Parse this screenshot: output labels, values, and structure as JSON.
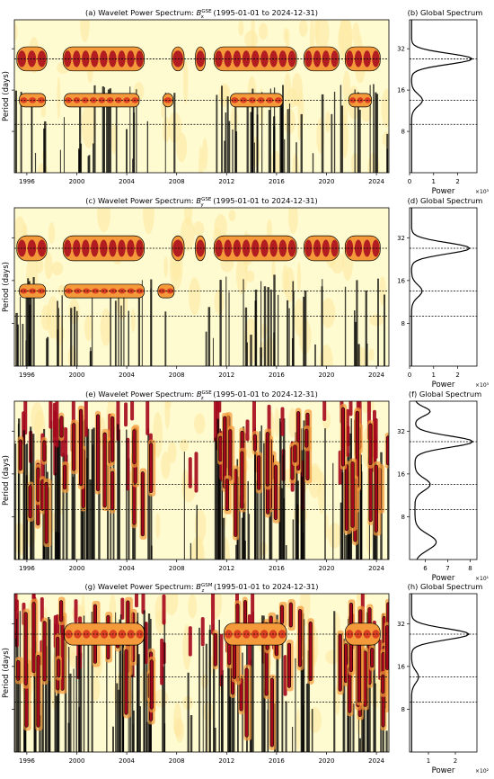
{
  "figure": {
    "ylabel": "Period (days)",
    "colors": {
      "background": "#fffbd0",
      "light": "#fde9a3",
      "orange": "#f59a3a",
      "red": "#d7301f",
      "darkred": "#a5071c",
      "contour": "#000000"
    }
  },
  "chart_data": [
    {
      "type": "heatmap",
      "title": "(a) Wavelet Power Spectrum: B_x^GSE (1995-01-01 to 2024-12-31)",
      "title_main": "(a) Wavelet Power Spectrum: ",
      "title_var": "B",
      "title_sub": "x",
      "title_sup": "GSE",
      "title_tail": " (1995-01-01 to 2024-12-31)",
      "xlabel": "",
      "ylabel": "Period (days)",
      "xticks": [
        "1996",
        "2000",
        "2004",
        "2008",
        "2012",
        "2016",
        "2020",
        "2024"
      ],
      "xlim": [
        1995.0,
        2025.0
      ],
      "yticks": [
        "8",
        "16",
        "32"
      ],
      "reference_periods": [
        27,
        13.5,
        9
      ],
      "bands": [
        {
          "period": 27,
          "intensity": 0.95,
          "active_years": [
            [
              1995.2,
              1997.6
            ],
            [
              1998.9,
              2005.4
            ],
            [
              2007.6,
              2008.6
            ],
            [
              2009.5,
              2010.3
            ],
            [
              2011.0,
              2017.6
            ],
            [
              2018.2,
              2021.0
            ],
            [
              2021.5,
              2024.3
            ]
          ]
        },
        {
          "period": 13.5,
          "intensity": 0.6,
          "active_years": [
            [
              1995.4,
              1997.5
            ],
            [
              1999.0,
              2005.0
            ],
            [
              2006.9,
              2007.7
            ],
            [
              2012.3,
              2016.5
            ],
            [
              2021.8,
              2023.6
            ]
          ]
        }
      ]
    },
    {
      "type": "line",
      "title": "(b) Global Spectrum",
      "xlabel": "Power",
      "x_multiplier": "×10³",
      "xticks": [
        "0",
        "1",
        "2"
      ],
      "xlim": [
        0,
        2.8
      ],
      "yticks": [
        "8",
        "16",
        "32"
      ],
      "reference_periods": [
        27,
        13.5,
        9
      ],
      "peak_power": 2.6,
      "peak_period": 27
    },
    {
      "type": "heatmap",
      "title": "(c) Wavelet Power Spectrum: B_y^GSE (1995-01-01 to 2024-12-31)",
      "title_main": "(c) Wavelet Power Spectrum: ",
      "title_var": "B",
      "title_sub": "y",
      "title_sup": "GSE",
      "title_tail": " (1995-01-01 to 2024-12-31)",
      "xlabel": "",
      "ylabel": "Period (days)",
      "xticks": [
        "1996",
        "2000",
        "2004",
        "2008",
        "2012",
        "2016",
        "2020",
        "2024"
      ],
      "xlim": [
        1995.0,
        2025.0
      ],
      "yticks": [
        "8",
        "16",
        "32"
      ],
      "reference_periods": [
        27,
        13.5,
        9
      ],
      "bands": [
        {
          "period": 27,
          "intensity": 0.95,
          "active_years": [
            [
              1995.2,
              1997.6
            ],
            [
              1998.9,
              2005.4
            ],
            [
              2007.6,
              2008.6
            ],
            [
              2009.5,
              2010.3
            ],
            [
              2011.0,
              2017.6
            ],
            [
              2018.2,
              2021.0
            ],
            [
              2021.5,
              2024.3
            ]
          ]
        },
        {
          "period": 13.5,
          "intensity": 0.55,
          "active_years": [
            [
              1995.4,
              1997.5
            ],
            [
              1999.0,
              2005.4
            ],
            [
              2006.5,
              2007.8
            ]
          ]
        }
      ]
    },
    {
      "type": "line",
      "title": "(d) Global Spectrum",
      "xlabel": "Power",
      "x_multiplier": "×10³",
      "xticks": [
        "0",
        "1",
        "2"
      ],
      "xlim": [
        0,
        2.8
      ],
      "yticks": [
        "8",
        "16",
        "32"
      ],
      "reference_periods": [
        27,
        13.5,
        9
      ],
      "peak_power": 2.5,
      "peak_period": 27
    },
    {
      "type": "heatmap",
      "title": "(e) Wavelet Power Spectrum: B_z^GSE (1995-01-01 to 2024-12-31)",
      "title_main": "(e) Wavelet Power Spectrum: ",
      "title_var": "B",
      "title_sub": "z",
      "title_sup": "GSE",
      "title_tail": " (1995-01-01 to 2024-12-31)",
      "xlabel": "",
      "ylabel": "Period (days)",
      "xticks": [
        "1996",
        "2000",
        "2004",
        "2008",
        "2012",
        "2016",
        "2020",
        "2024"
      ],
      "xlim": [
        1995.0,
        2025.0
      ],
      "yticks": [
        "8",
        "16",
        "32"
      ],
      "reference_periods": [
        27,
        13.5,
        9
      ],
      "bands": []
    },
    {
      "type": "line",
      "title": "(f) Global Spectrum",
      "xlabel": "Power",
      "x_multiplier": "×10¹",
      "xticks": [
        "6",
        "7",
        "8"
      ],
      "xlim": [
        5.3,
        8.3
      ],
      "yticks": [
        "8",
        "16",
        "32"
      ],
      "reference_periods": [
        27,
        13.5,
        9
      ],
      "peak_power": 8.1,
      "peak_period": 27
    },
    {
      "type": "heatmap",
      "title": "(g) Wavelet Power Spectrum: B_z^GSM (1995-01-01 to 2024-12-31)",
      "title_main": "(g) Wavelet Power Spectrum: ",
      "title_var": "B",
      "title_sub": "z",
      "title_sup": "GSM",
      "title_tail": " (1995-01-01 to 2024-12-31)",
      "xlabel": "",
      "ylabel": "Period (days)",
      "xticks": [
        "1996",
        "2000",
        "2004",
        "2008",
        "2012",
        "2016",
        "2020",
        "2024"
      ],
      "xlim": [
        1995.0,
        2025.0
      ],
      "yticks": [
        "8",
        "16",
        "32"
      ],
      "reference_periods": [
        27,
        13.5,
        9
      ],
      "bands": [
        {
          "period": 27,
          "intensity": 0.55,
          "active_years": [
            [
              1999.0,
              2005.4
            ],
            [
              2011.8,
              2016.8
            ],
            [
              2021.5,
              2024.3
            ]
          ]
        }
      ]
    },
    {
      "type": "line",
      "title": "(h) Global Spectrum",
      "xlabel": "Power",
      "x_multiplier": "×10²",
      "xticks": [
        "1",
        "2"
      ],
      "xlim": [
        0.3,
        2.8
      ],
      "yticks": [
        "8",
        "16",
        "32"
      ],
      "reference_periods": [
        27,
        13.5,
        9
      ],
      "peak_power": 2.5,
      "peak_period": 27
    }
  ]
}
